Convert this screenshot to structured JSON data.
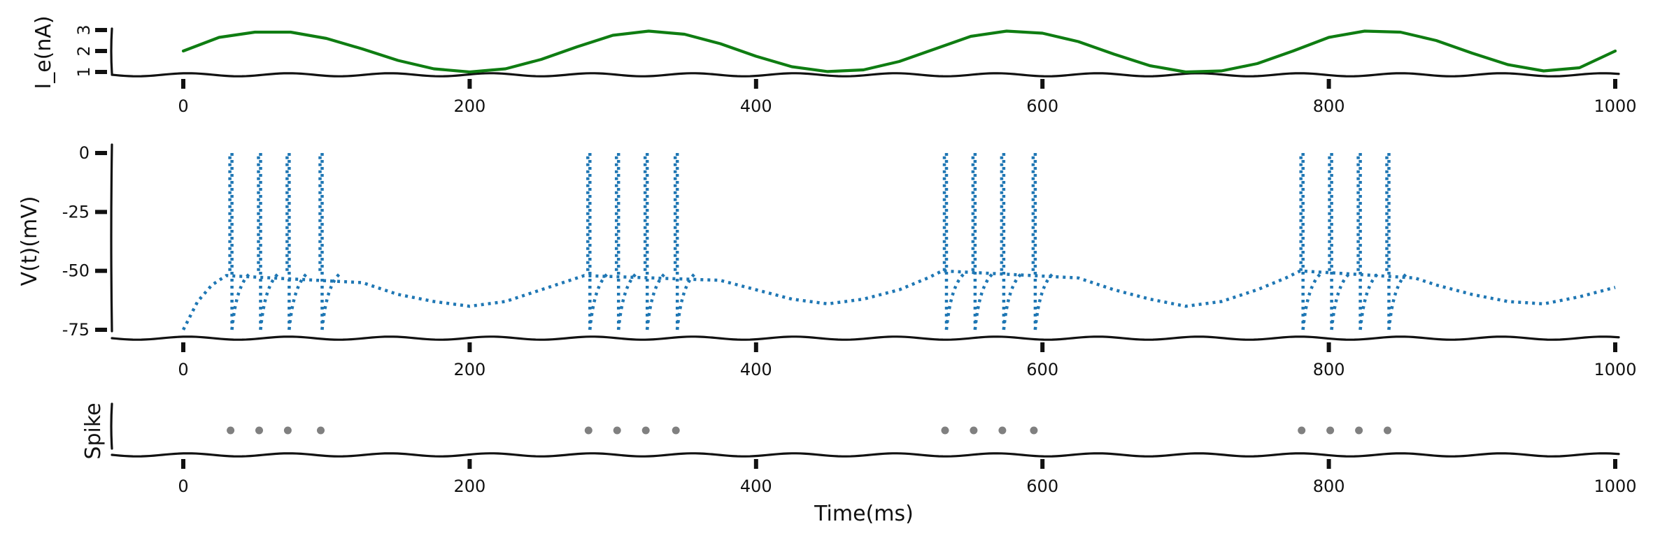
{
  "chart_data": [
    {
      "type": "line",
      "panel": "current",
      "xlabel": "",
      "ylabel": "I_e(nA)",
      "xlim": [
        -50,
        1000
      ],
      "ylim": [
        1,
        3
      ],
      "xticks": [
        0,
        200,
        400,
        600,
        800,
        1000
      ],
      "yticks": [
        1,
        2,
        3
      ],
      "ytick_labels": [
        "1",
        "2",
        "3"
      ],
      "series": [
        {
          "color": "#0f7d12",
          "style": "solid",
          "x": [
            0,
            25,
            50,
            75,
            100,
            125,
            150,
            175,
            200,
            225,
            250,
            275,
            300,
            325,
            350,
            375,
            400,
            425,
            450,
            475,
            500,
            525,
            550,
            575,
            600,
            625,
            650,
            675,
            700,
            725,
            750,
            775,
            800,
            825,
            850,
            875,
            900,
            925,
            950,
            975,
            1000
          ],
          "y": [
            2.0,
            2.65,
            2.9,
            2.9,
            2.6,
            2.1,
            1.55,
            1.15,
            1.0,
            1.15,
            1.6,
            2.2,
            2.75,
            2.95,
            2.8,
            2.35,
            1.75,
            1.25,
            1.02,
            1.1,
            1.5,
            2.1,
            2.7,
            2.95,
            2.85,
            2.45,
            1.85,
            1.3,
            1.0,
            1.05,
            1.4,
            2.0,
            2.65,
            2.95,
            2.9,
            2.5,
            1.9,
            1.35,
            1.05,
            1.2,
            2.0
          ]
        }
      ]
    },
    {
      "type": "line",
      "panel": "voltage",
      "xlabel": "",
      "ylabel": "V(t)(mV)",
      "xlim": [
        -50,
        1000
      ],
      "ylim": [
        -75,
        0
      ],
      "xticks": [
        0,
        200,
        400,
        600,
        800,
        1000
      ],
      "yticks": [
        -75,
        -50,
        -25,
        0
      ],
      "spike_times": [
        33,
        53,
        73,
        96,
        283,
        303,
        323,
        344,
        532,
        552,
        572,
        594,
        781,
        801,
        821,
        841
      ],
      "series": [
        {
          "color": "#1f77b4",
          "style": "dotted",
          "x": [
            0,
            10,
            20,
            30,
            125,
            150,
            175,
            200,
            225,
            250,
            270,
            280,
            375,
            400,
            425,
            450,
            475,
            500,
            520,
            530,
            625,
            650,
            675,
            700,
            725,
            750,
            770,
            780,
            860,
            875,
            900,
            925,
            950,
            975,
            1000
          ],
          "y": [
            -75,
            -63,
            -56,
            -52,
            -55,
            -60,
            -63,
            -65,
            -63,
            -58,
            -54,
            -52,
            -54,
            -58,
            -62,
            -64,
            -62,
            -58,
            -53,
            -50,
            -53,
            -58,
            -62,
            -65,
            -63,
            -58,
            -53,
            -50,
            -53,
            -56,
            -60,
            -63,
            -64,
            -61,
            -57
          ]
        }
      ]
    },
    {
      "type": "scatter",
      "panel": "spikes",
      "xlabel": "Time(ms)",
      "ylabel": "Spike",
      "xlim": [
        -50,
        1000
      ],
      "xticks": [
        0,
        200,
        400,
        600,
        800,
        1000
      ],
      "series": [
        {
          "color": "#808080",
          "x": [
            33,
            53,
            73,
            96,
            283,
            303,
            323,
            344,
            532,
            552,
            572,
            594,
            781,
            801,
            821,
            841
          ]
        }
      ]
    }
  ]
}
